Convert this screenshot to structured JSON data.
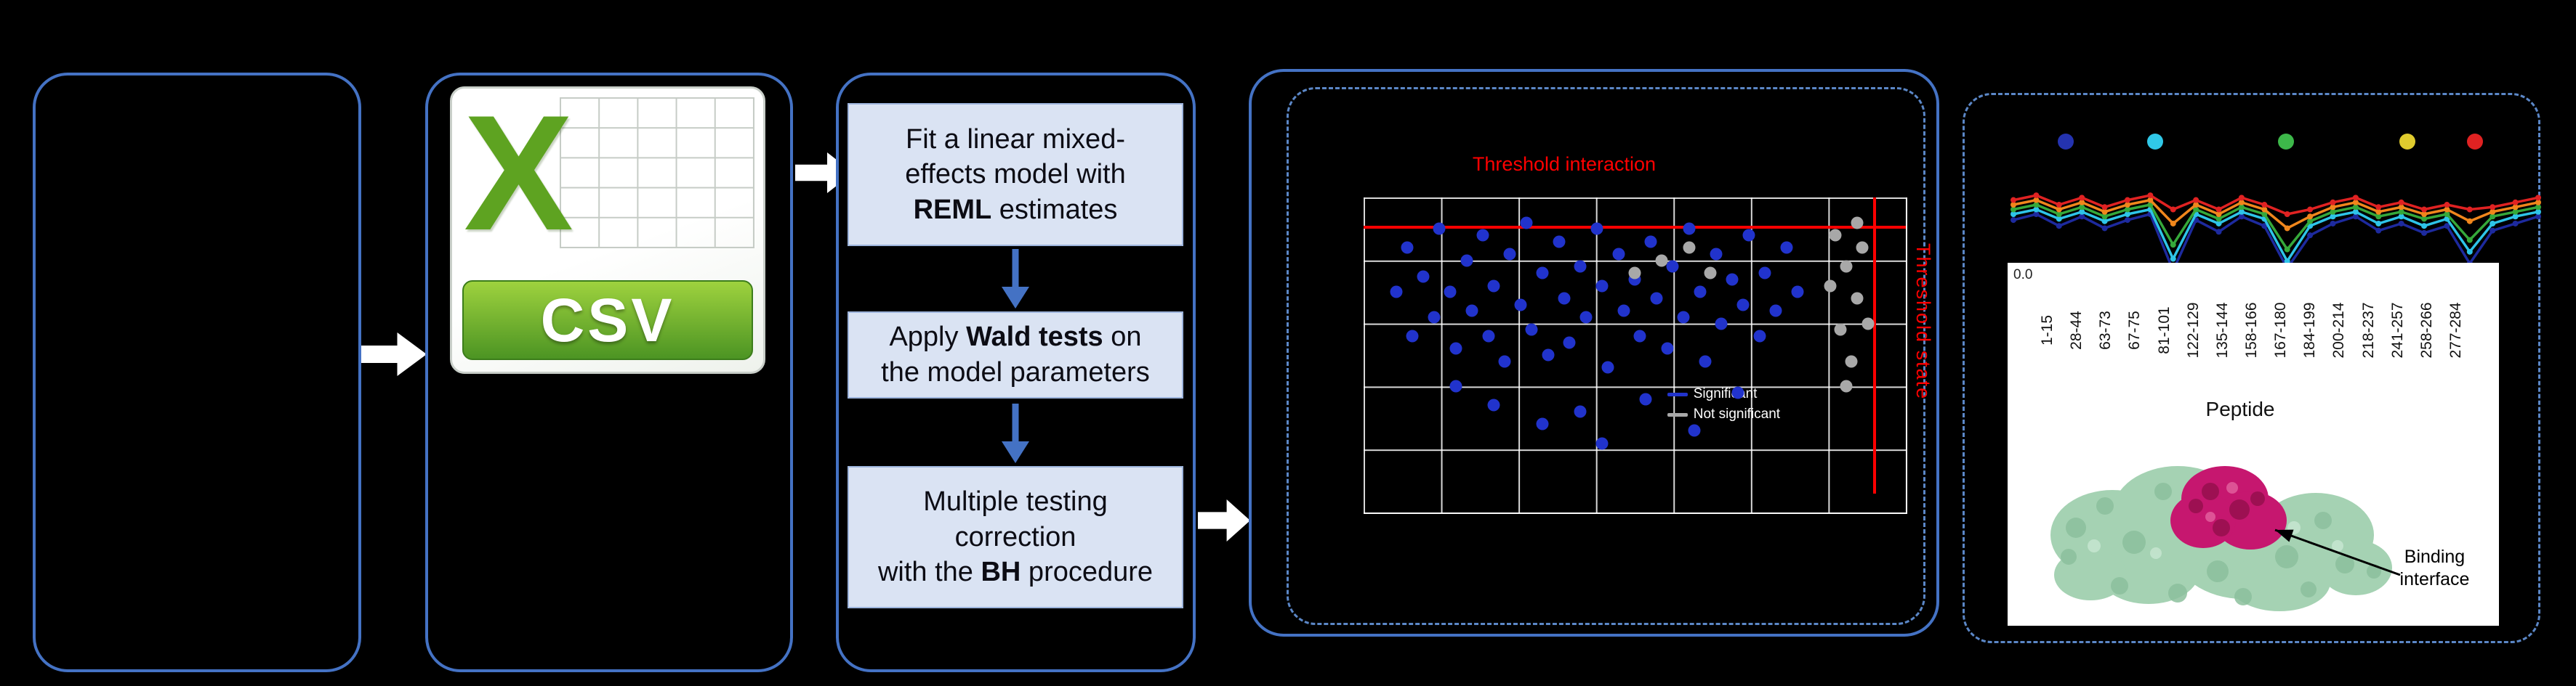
{
  "colors": {
    "background": "#000000",
    "accent_blue": "#4472c4",
    "dashed_blue": "#5b87c7",
    "step_fill": "#dae3f3",
    "threshold_red": "#ff0000",
    "csv_green": "#5ea321"
  },
  "csv_icon": {
    "letter": "X",
    "label": "CSV"
  },
  "steps": [
    {
      "pre": "Fit a linear mixed-\neffects model with\n",
      "bold": "REML",
      "post": " estimates"
    },
    {
      "pre": "Apply ",
      "bold": "Wald tests",
      "post": " on\nthe model parameters"
    },
    {
      "pre": "Multiple testing\ncorrection\nwith the ",
      "bold": "BH",
      "post": " procedure"
    }
  ],
  "scatter": {
    "title": "Threshold interaction",
    "right_label": "Threshold state",
    "grid_cols": 7,
    "grid_rows": 5,
    "h_threshold_y": 9,
    "v_threshold_x": 94,
    "point_color_main": "#2133cc",
    "point_color_alt": "#a8a8a8",
    "legend": [
      {
        "label": "Significant",
        "color": "#2133cc"
      },
      {
        "label": "Not significant",
        "color": "#a8a8a8"
      }
    ],
    "points_main": [
      [
        6,
        30
      ],
      [
        8,
        16
      ],
      [
        9,
        44
      ],
      [
        11,
        25
      ],
      [
        13,
        38
      ],
      [
        14,
        10
      ],
      [
        16,
        30
      ],
      [
        17,
        48
      ],
      [
        19,
        20
      ],
      [
        20,
        36
      ],
      [
        22,
        12
      ],
      [
        23,
        44
      ],
      [
        24,
        28
      ],
      [
        26,
        52
      ],
      [
        27,
        18
      ],
      [
        29,
        34
      ],
      [
        30,
        8
      ],
      [
        31,
        42
      ],
      [
        33,
        24
      ],
      [
        34,
        50
      ],
      [
        36,
        14
      ],
      [
        37,
        32
      ],
      [
        38,
        46
      ],
      [
        40,
        22
      ],
      [
        41,
        38
      ],
      [
        43,
        10
      ],
      [
        44,
        28
      ],
      [
        45,
        54
      ],
      [
        47,
        18
      ],
      [
        48,
        36
      ],
      [
        50,
        26
      ],
      [
        51,
        44
      ],
      [
        53,
        14
      ],
      [
        54,
        32
      ],
      [
        56,
        48
      ],
      [
        57,
        22
      ],
      [
        59,
        38
      ],
      [
        60,
        10
      ],
      [
        62,
        30
      ],
      [
        63,
        52
      ],
      [
        65,
        18
      ],
      [
        66,
        40
      ],
      [
        68,
        26
      ],
      [
        70,
        34
      ],
      [
        71,
        12
      ],
      [
        73,
        44
      ],
      [
        74,
        24
      ],
      [
        76,
        36
      ],
      [
        78,
        16
      ],
      [
        80,
        30
      ],
      [
        24,
        66
      ],
      [
        33,
        72
      ],
      [
        44,
        78
      ],
      [
        52,
        64
      ],
      [
        61,
        74
      ],
      [
        17,
        60
      ],
      [
        69,
        62
      ],
      [
        40,
        68
      ]
    ],
    "points_alt": [
      [
        87,
        12
      ],
      [
        89,
        22
      ],
      [
        91,
        32
      ],
      [
        88,
        42
      ],
      [
        90,
        52
      ],
      [
        92,
        16
      ],
      [
        93,
        40
      ],
      [
        89,
        60
      ],
      [
        91,
        8
      ],
      [
        55,
        20
      ],
      [
        60,
        16
      ],
      [
        64,
        24
      ],
      [
        50,
        24
      ],
      [
        86,
        28
      ]
    ]
  },
  "uptake_chart": {
    "ytick": "0.0",
    "xlabel": "Peptide",
    "peptides": [
      "1-15",
      "28-44",
      "63-73",
      "67-75",
      "81-101",
      "122-129",
      "135-144",
      "158-166",
      "167-180",
      "184-199",
      "200-214",
      "218-237",
      "241-257",
      "258-266",
      "277-284"
    ],
    "dot_colors": [
      "#2433b0",
      "#30c8e8",
      "#3db84a",
      "#e0cc2e",
      "#e02222"
    ],
    "dot_x": [
      10,
      27,
      52,
      75,
      88
    ],
    "series": [
      {
        "name": "state-dark-blue",
        "color": "#1d2a9e",
        "values": [
          55,
          50,
          60,
          52,
          62,
          55,
          50,
          98,
          55,
          65,
          52,
          60,
          96,
          68,
          58,
          52,
          64,
          58,
          66,
          60,
          92,
          64,
          58,
          52
        ]
      },
      {
        "name": "state-cyan",
        "color": "#2ec4e8",
        "values": [
          50,
          46,
          54,
          48,
          56,
          50,
          46,
          88,
          50,
          58,
          48,
          54,
          90,
          60,
          52,
          48,
          58,
          52,
          60,
          54,
          82,
          58,
          52,
          48
        ]
      },
      {
        "name": "state-green",
        "color": "#35a83a",
        "values": [
          46,
          42,
          50,
          44,
          52,
          46,
          42,
          76,
          46,
          54,
          44,
          50,
          80,
          56,
          48,
          44,
          52,
          48,
          54,
          50,
          72,
          52,
          48,
          44
        ]
      },
      {
        "name": "state-orange",
        "color": "#f0861c",
        "values": [
          42,
          38,
          46,
          40,
          48,
          42,
          38,
          58,
          42,
          50,
          40,
          46,
          62,
          52,
          44,
          40,
          48,
          44,
          50,
          46,
          56,
          48,
          44,
          40
        ]
      },
      {
        "name": "state-red",
        "color": "#e02222",
        "values": [
          38,
          34,
          42,
          36,
          44,
          38,
          34,
          46,
          38,
          46,
          36,
          42,
          50,
          46,
          40,
          36,
          44,
          40,
          46,
          42,
          46,
          44,
          40,
          36
        ]
      }
    ]
  },
  "protein": {
    "annotation": "Binding\ninterface"
  }
}
